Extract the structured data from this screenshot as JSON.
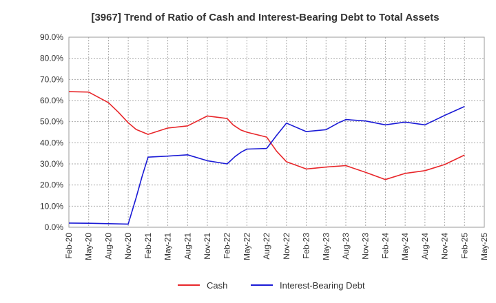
{
  "chart_data": {
    "type": "line",
    "title": "[3967]  Trend of Ratio of Cash and Interest-Bearing Debt to Total Assets",
    "xlabel": "",
    "ylabel": "",
    "ylim": [
      0,
      90
    ],
    "y_ticks": [
      "0.0%",
      "10.0%",
      "20.0%",
      "30.0%",
      "40.0%",
      "50.0%",
      "60.0%",
      "70.0%",
      "80.0%",
      "90.0%"
    ],
    "grid": true,
    "legend_position": "bottom",
    "categories": [
      "Feb-20",
      "May-20",
      "Aug-20",
      "Nov-20",
      "Feb-21",
      "May-21",
      "Aug-21",
      "Nov-21",
      "Feb-22",
      "May-22",
      "Aug-22",
      "Nov-22",
      "Feb-23",
      "May-23",
      "Aug-23",
      "Nov-23",
      "Feb-24",
      "May-24",
      "Aug-24",
      "Nov-24",
      "Feb-25",
      "May-25"
    ],
    "series": [
      {
        "name": "Cash",
        "color": "#e8262a",
        "points": [
          [
            0,
            64.2
          ],
          [
            1,
            64.0
          ],
          [
            2,
            59.0
          ],
          [
            2.5,
            54.5
          ],
          [
            3,
            49.5
          ],
          [
            3.4,
            46.3
          ],
          [
            4,
            44.0
          ],
          [
            5,
            47.0
          ],
          [
            6,
            48.0
          ],
          [
            7,
            52.7
          ],
          [
            8,
            51.5
          ],
          [
            8.3,
            48.5
          ],
          [
            8.7,
            46.0
          ],
          [
            9,
            45.0
          ],
          [
            10,
            42.7
          ],
          [
            10.5,
            36.0
          ],
          [
            11,
            31.0
          ],
          [
            12,
            27.6
          ],
          [
            13,
            28.5
          ],
          [
            14,
            29.2
          ],
          [
            15,
            26.0
          ],
          [
            16,
            22.6
          ],
          [
            17,
            25.5
          ],
          [
            18,
            26.8
          ],
          [
            19,
            29.7
          ],
          [
            20,
            34.2
          ]
        ]
      },
      {
        "name": "Interest-Bearing Debt",
        "color": "#1a1ad6",
        "points": [
          [
            0,
            2.0
          ],
          [
            1,
            1.9
          ],
          [
            2,
            1.7
          ],
          [
            3,
            1.5
          ],
          [
            3.4,
            14.0
          ],
          [
            3.7,
            24.0
          ],
          [
            4,
            33.2
          ],
          [
            5,
            33.7
          ],
          [
            6,
            34.3
          ],
          [
            7,
            31.5
          ],
          [
            8,
            30.0
          ],
          [
            8.4,
            33.5
          ],
          [
            8.7,
            35.5
          ],
          [
            9,
            37.0
          ],
          [
            10,
            37.3
          ],
          [
            10.5,
            43.5
          ],
          [
            11,
            49.3
          ],
          [
            12,
            45.3
          ],
          [
            13,
            46.2
          ],
          [
            13.6,
            49.3
          ],
          [
            14,
            51.0
          ],
          [
            15,
            50.3
          ],
          [
            16,
            48.5
          ],
          [
            17,
            49.8
          ],
          [
            18,
            48.5
          ],
          [
            19,
            53.0
          ],
          [
            20,
            57.2
          ]
        ]
      }
    ]
  }
}
